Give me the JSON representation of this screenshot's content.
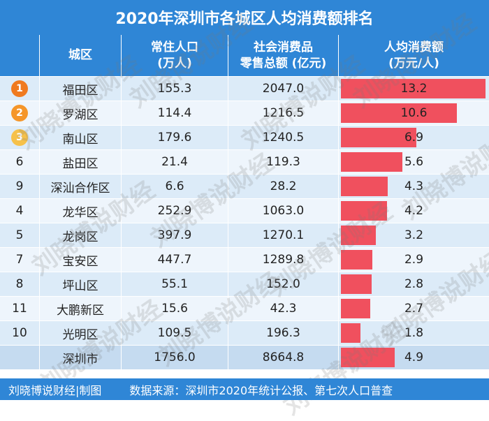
{
  "title": "2020年深圳市各城区人均消费额排名",
  "headers": {
    "rank": "",
    "district": "城区",
    "population_l1": "常住人口",
    "population_l2": "(万人)",
    "retail_l1": "社会消费品",
    "retail_l2": "零售总额 (亿元)",
    "percapita_l1": "人均消费额",
    "percapita_l2": "(万元/人)"
  },
  "bar_max": 13.2,
  "colors": {
    "header": "#2f86d6",
    "bar": "#f0505e",
    "medal_1": "#f07a1f",
    "medal_2": "#f5962a",
    "medal_3": "#f6c14a"
  },
  "rows": [
    {
      "rank": "1",
      "district": "福田区",
      "population": "155.3",
      "retail": "2047.0",
      "per_capita": "13.2",
      "value": 13.2,
      "medal": "medal_1"
    },
    {
      "rank": "2",
      "district": "罗湖区",
      "population": "114.4",
      "retail": "1216.5",
      "per_capita": "10.6",
      "value": 10.6,
      "medal": "medal_2"
    },
    {
      "rank": "3",
      "district": "南山区",
      "population": "179.6",
      "retail": "1240.5",
      "per_capita": "6.9",
      "value": 6.9,
      "medal": "medal_3"
    },
    {
      "rank": "6",
      "district": "盐田区",
      "population": "21.4",
      "retail": "119.3",
      "per_capita": "5.6",
      "value": 5.6
    },
    {
      "rank": "9",
      "district": "深汕合作区",
      "population": "6.6",
      "retail": "28.2",
      "per_capita": "4.3",
      "value": 4.3
    },
    {
      "rank": "4",
      "district": "龙华区",
      "population": "252.9",
      "retail": "1063.0",
      "per_capita": "4.2",
      "value": 4.2
    },
    {
      "rank": "5",
      "district": "龙岗区",
      "population": "397.9",
      "retail": "1270.1",
      "per_capita": "3.2",
      "value": 3.2
    },
    {
      "rank": "7",
      "district": "宝安区",
      "population": "447.7",
      "retail": "1289.8",
      "per_capita": "2.9",
      "value": 2.9
    },
    {
      "rank": "8",
      "district": "坪山区",
      "population": "55.1",
      "retail": "152.0",
      "per_capita": "2.8",
      "value": 2.8
    },
    {
      "rank": "11",
      "district": "大鹏新区",
      "population": "15.6",
      "retail": "42.3",
      "per_capita": "2.7",
      "value": 2.7
    },
    {
      "rank": "10",
      "district": "光明区",
      "population": "109.5",
      "retail": "196.3",
      "per_capita": "1.8",
      "value": 1.8
    }
  ],
  "total": {
    "district": "深圳市",
    "population": "1756.0",
    "retail": "8664.8",
    "per_capita": "4.9",
    "value": 4.9
  },
  "footer": {
    "credit": "刘晓博说财经|制图",
    "source": "数据来源：深圳市2020年统计公报、第七次人口普查"
  },
  "watermark_text": "刘晓博说财经"
}
